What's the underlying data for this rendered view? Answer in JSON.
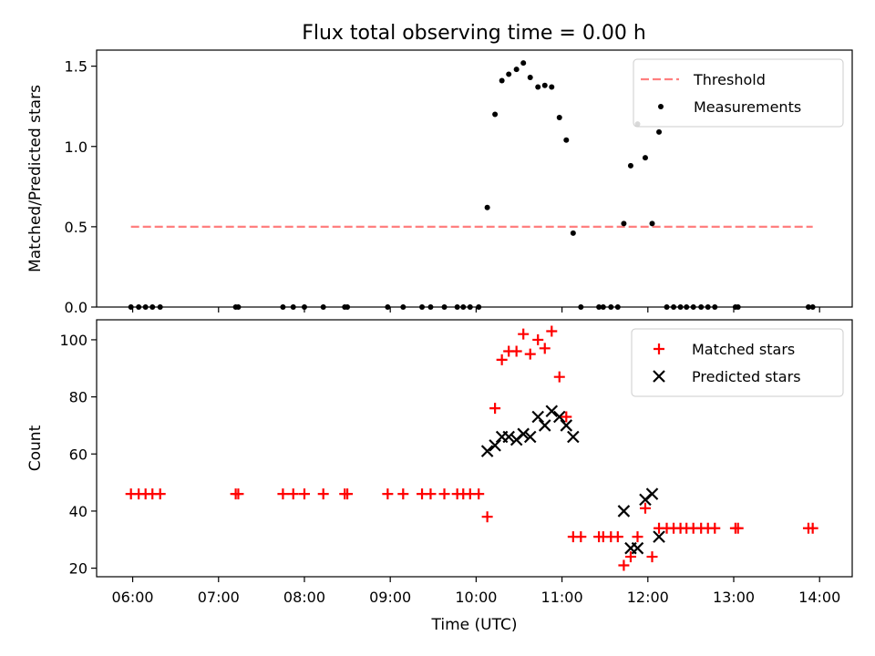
{
  "title": "Flux total observing time = 0.00 h",
  "chart_data": [
    {
      "type": "scatter",
      "ylabel": "Matched/Predicted stars",
      "xlim": [
        5.58,
        14.38
      ],
      "ylim": [
        0,
        1.6
      ],
      "yticks": [
        0.0,
        0.5,
        1.0,
        1.5
      ],
      "ytick_labels": [
        "0.0",
        "0.5",
        "1.0",
        "1.5"
      ],
      "xticks": [
        6,
        7,
        8,
        9,
        10,
        11,
        12,
        13,
        14
      ],
      "xtick_labels_visible": false,
      "legend_position": "top-right",
      "threshold": {
        "name": "Threshold",
        "y": 0.5,
        "x_start": 5.98,
        "x_end": 13.92,
        "color": "#ff7f7f",
        "style": "dashed"
      },
      "series": [
        {
          "name": "Measurements",
          "color": "#000000",
          "marker": "dot",
          "points": [
            [
              5.98,
              0
            ],
            [
              6.07,
              0
            ],
            [
              6.15,
              0
            ],
            [
              6.23,
              0
            ],
            [
              6.32,
              0
            ],
            [
              7.2,
              0
            ],
            [
              7.23,
              0
            ],
            [
              7.75,
              0
            ],
            [
              7.87,
              0
            ],
            [
              8.0,
              0
            ],
            [
              8.22,
              0
            ],
            [
              8.47,
              0
            ],
            [
              8.5,
              0
            ],
            [
              8.97,
              0
            ],
            [
              9.15,
              0
            ],
            [
              9.37,
              0
            ],
            [
              9.47,
              0
            ],
            [
              9.63,
              0
            ],
            [
              9.78,
              0
            ],
            [
              9.85,
              0
            ],
            [
              9.93,
              0
            ],
            [
              10.03,
              0
            ],
            [
              10.13,
              0.62
            ],
            [
              10.22,
              1.2
            ],
            [
              10.3,
              1.41
            ],
            [
              10.38,
              1.45
            ],
            [
              10.47,
              1.48
            ],
            [
              10.55,
              1.52
            ],
            [
              10.63,
              1.43
            ],
            [
              10.72,
              1.37
            ],
            [
              10.8,
              1.38
            ],
            [
              10.88,
              1.37
            ],
            [
              10.97,
              1.18
            ],
            [
              11.05,
              1.04
            ],
            [
              11.13,
              0.46
            ],
            [
              11.22,
              0
            ],
            [
              11.43,
              0
            ],
            [
              11.48,
              0
            ],
            [
              11.57,
              0
            ],
            [
              11.65,
              0
            ],
            [
              11.72,
              0.52
            ],
            [
              11.8,
              0.88
            ],
            [
              11.88,
              1.14
            ],
            [
              11.97,
              0.93
            ],
            [
              12.05,
              0.52
            ],
            [
              12.13,
              1.09
            ],
            [
              12.22,
              0
            ],
            [
              12.3,
              0
            ],
            [
              12.38,
              0
            ],
            [
              12.45,
              0
            ],
            [
              12.53,
              0
            ],
            [
              12.62,
              0
            ],
            [
              12.7,
              0
            ],
            [
              12.78,
              0
            ],
            [
              13.02,
              0
            ],
            [
              13.05,
              0
            ],
            [
              13.87,
              0
            ],
            [
              13.92,
              0
            ]
          ]
        }
      ]
    },
    {
      "type": "scatter",
      "xlabel": "Time (UTC)",
      "ylabel": "Count",
      "xlim": [
        5.58,
        14.38
      ],
      "ylim": [
        17,
        107
      ],
      "yticks": [
        20,
        40,
        60,
        80,
        100
      ],
      "ytick_labels": [
        "20",
        "40",
        "60",
        "80",
        "100"
      ],
      "xticks": [
        6,
        7,
        8,
        9,
        10,
        11,
        12,
        13,
        14
      ],
      "xtick_labels": [
        "06:00",
        "07:00",
        "08:00",
        "09:00",
        "10:00",
        "11:00",
        "12:00",
        "13:00",
        "14:00"
      ],
      "legend_position": "top-right",
      "series": [
        {
          "name": "Matched stars",
          "color": "#ff0000",
          "marker": "plus",
          "points": [
            [
              5.98,
              46
            ],
            [
              6.07,
              46
            ],
            [
              6.15,
              46
            ],
            [
              6.23,
              46
            ],
            [
              6.32,
              46
            ],
            [
              7.2,
              46
            ],
            [
              7.23,
              46
            ],
            [
              7.75,
              46
            ],
            [
              7.87,
              46
            ],
            [
              8.0,
              46
            ],
            [
              8.22,
              46
            ],
            [
              8.47,
              46
            ],
            [
              8.5,
              46
            ],
            [
              8.97,
              46
            ],
            [
              9.15,
              46
            ],
            [
              9.37,
              46
            ],
            [
              9.47,
              46
            ],
            [
              9.63,
              46
            ],
            [
              9.78,
              46
            ],
            [
              9.85,
              46
            ],
            [
              9.93,
              46
            ],
            [
              10.03,
              46
            ],
            [
              10.13,
              38
            ],
            [
              10.22,
              76
            ],
            [
              10.3,
              93
            ],
            [
              10.38,
              96
            ],
            [
              10.47,
              96
            ],
            [
              10.55,
              102
            ],
            [
              10.63,
              95
            ],
            [
              10.72,
              100
            ],
            [
              10.8,
              97
            ],
            [
              10.88,
              103
            ],
            [
              10.97,
              87
            ],
            [
              11.05,
              73
            ],
            [
              11.13,
              31
            ],
            [
              11.22,
              31
            ],
            [
              11.43,
              31
            ],
            [
              11.48,
              31
            ],
            [
              11.57,
              31
            ],
            [
              11.65,
              31
            ],
            [
              11.72,
              21
            ],
            [
              11.8,
              24
            ],
            [
              11.88,
              31
            ],
            [
              11.97,
              41
            ],
            [
              12.05,
              24
            ],
            [
              12.13,
              34
            ],
            [
              12.22,
              34
            ],
            [
              12.3,
              34
            ],
            [
              12.38,
              34
            ],
            [
              12.45,
              34
            ],
            [
              12.53,
              34
            ],
            [
              12.62,
              34
            ],
            [
              12.7,
              34
            ],
            [
              12.78,
              34
            ],
            [
              13.02,
              34
            ],
            [
              13.05,
              34
            ],
            [
              13.87,
              34
            ],
            [
              13.92,
              34
            ]
          ]
        },
        {
          "name": "Predicted stars",
          "color": "#000000",
          "marker": "x",
          "points": [
            [
              10.13,
              61
            ],
            [
              10.22,
              63
            ],
            [
              10.3,
              66
            ],
            [
              10.38,
              66
            ],
            [
              10.47,
              65
            ],
            [
              10.55,
              67
            ],
            [
              10.63,
              66
            ],
            [
              10.72,
              73
            ],
            [
              10.8,
              70
            ],
            [
              10.88,
              75
            ],
            [
              10.97,
              73
            ],
            [
              11.05,
              70
            ],
            [
              11.13,
              66
            ],
            [
              11.72,
              40
            ],
            [
              11.8,
              27
            ],
            [
              11.88,
              27
            ],
            [
              11.97,
              44
            ],
            [
              12.05,
              46
            ],
            [
              12.13,
              31
            ]
          ]
        }
      ]
    }
  ]
}
